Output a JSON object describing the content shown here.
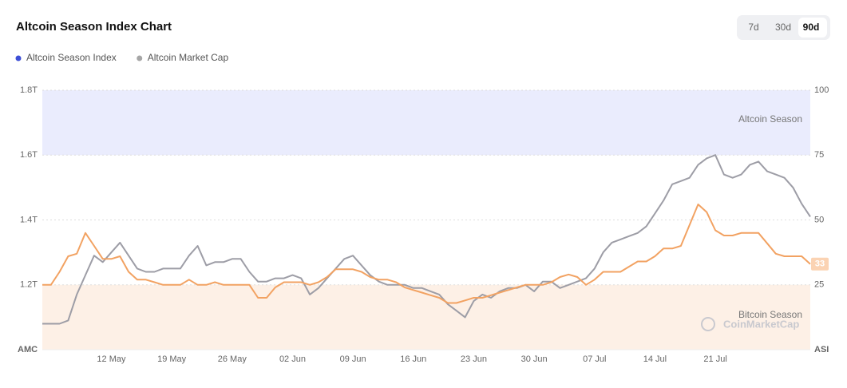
{
  "chart_data": {
    "type": "line",
    "title": "Altcoin Season Index Chart",
    "buttons": [
      "7d",
      "30d",
      "90d"
    ],
    "selected_button": 2,
    "watermark": "CoinMarketCap",
    "y_label": "AMC",
    "y2_label": "ASI",
    "ylim": [
      1.0,
      1.8
    ],
    "yticks": [
      {
        "value": 1.2,
        "label": "1.2T"
      },
      {
        "value": 1.4,
        "label": "1.4T"
      },
      {
        "value": 1.6,
        "label": "1.6T"
      },
      {
        "value": 1.8,
        "label": "1.8T"
      }
    ],
    "y2lim": [
      0,
      100
    ],
    "y2ticks": [
      25,
      50,
      75,
      100
    ],
    "grid": true,
    "zones": [
      {
        "label": "Altcoin Season",
        "from": 75,
        "to": 100,
        "color": "#eaecfd"
      },
      {
        "label": "Bitcoin Season",
        "from": 0,
        "to": 25,
        "color": "#fdf0e6"
      }
    ],
    "categories": [
      null,
      null,
      null,
      null,
      null,
      null,
      null,
      null,
      "12 May",
      null,
      null,
      null,
      null,
      null,
      null,
      "19 May",
      null,
      null,
      null,
      null,
      null,
      null,
      "26 May",
      null,
      null,
      null,
      null,
      null,
      null,
      "02 Jun",
      null,
      null,
      null,
      null,
      null,
      null,
      "09 Jun",
      null,
      null,
      null,
      null,
      null,
      null,
      "16 Jun",
      null,
      null,
      null,
      null,
      null,
      null,
      "23 Jun",
      null,
      null,
      null,
      null,
      null,
      null,
      "30 Jun",
      null,
      null,
      null,
      null,
      null,
      null,
      "07 Jul",
      null,
      null,
      null,
      null,
      null,
      null,
      "14 Jul",
      null,
      null,
      null,
      null,
      null,
      null,
      "21 Jul",
      null,
      null,
      null,
      null,
      null,
      null,
      null,
      null,
      null,
      null,
      null
    ],
    "series": [
      {
        "name": "Altcoin Season Index",
        "color": "#f2a262",
        "legend_color": "#3d4fd6",
        "axis": "y2",
        "values": [
          25,
          25,
          30,
          36,
          37,
          45,
          40,
          35,
          35,
          36,
          30,
          27,
          27,
          26,
          25,
          25,
          25,
          27,
          25,
          25,
          26,
          25,
          25,
          25,
          25,
          20,
          20,
          24,
          26,
          26,
          26,
          25,
          26,
          28,
          31,
          31,
          31,
          30,
          28,
          27,
          27,
          26,
          24,
          23,
          22,
          21,
          20,
          18,
          18,
          19,
          20,
          20,
          21,
          22,
          23,
          24,
          25,
          25,
          25,
          26,
          28,
          29,
          28,
          25,
          27,
          30,
          30,
          30,
          32,
          34,
          34,
          36,
          39,
          39,
          40,
          48,
          56,
          53,
          46,
          44,
          44,
          45,
          45,
          45,
          41,
          37,
          36,
          36,
          36,
          33
        ]
      },
      {
        "name": "Altcoin Market Cap",
        "color": "#9d9da6",
        "legend_color": "#a6a6a6",
        "values": [
          1.08,
          1.08,
          1.08,
          1.09,
          1.17,
          1.23,
          1.29,
          1.27,
          1.3,
          1.33,
          1.29,
          1.25,
          1.24,
          1.24,
          1.25,
          1.25,
          1.25,
          1.29,
          1.32,
          1.26,
          1.27,
          1.27,
          1.28,
          1.28,
          1.24,
          1.21,
          1.21,
          1.22,
          1.22,
          1.23,
          1.22,
          1.17,
          1.19,
          1.22,
          1.25,
          1.28,
          1.29,
          1.26,
          1.23,
          1.21,
          1.2,
          1.2,
          1.2,
          1.19,
          1.19,
          1.18,
          1.17,
          1.14,
          1.12,
          1.1,
          1.15,
          1.17,
          1.16,
          1.18,
          1.19,
          1.19,
          1.2,
          1.18,
          1.21,
          1.21,
          1.19,
          1.2,
          1.21,
          1.22,
          1.25,
          1.3,
          1.33,
          1.34,
          1.35,
          1.36,
          1.38,
          1.42,
          1.46,
          1.51,
          1.52,
          1.53,
          1.57,
          1.59,
          1.6,
          1.54,
          1.53,
          1.54,
          1.57,
          1.58,
          1.55,
          1.54,
          1.53,
          1.5,
          1.45,
          1.41
        ]
      }
    ]
  }
}
